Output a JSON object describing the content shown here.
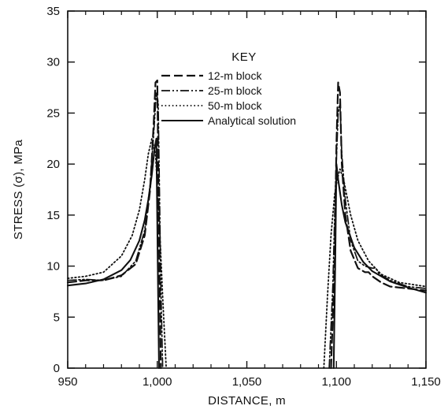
{
  "chart_data": {
    "type": "line",
    "title": "",
    "xlabel": "DISTANCE, m",
    "ylabel": "STRESS (σ), MPa",
    "xlim": [
      950,
      1150
    ],
    "ylim": [
      0,
      35
    ],
    "x_ticks": [
      950,
      1000,
      1050,
      1100,
      1150
    ],
    "x_tick_labels": [
      "950",
      "1,000",
      "1,050",
      "1,100",
      "1,150"
    ],
    "y_ticks": [
      0,
      5,
      10,
      15,
      20,
      25,
      30,
      35
    ],
    "y_tick_labels": [
      "0",
      "5",
      "10",
      "15",
      "20",
      "25",
      "30",
      "35"
    ],
    "grid": false,
    "legend": {
      "title": "KEY",
      "placement": "top-center",
      "entries": [
        "12-m block",
        "25-m block",
        "50-m block",
        "Analytical solution"
      ]
    },
    "series": [
      {
        "name": "12-m block",
        "style": "dashed",
        "segments": [
          [
            [
              950,
              8.4
            ],
            [
              960,
              8.6
            ],
            [
              970,
              8.6
            ],
            [
              980,
              9.1
            ],
            [
              988,
              10.2
            ],
            [
              993,
              13.0
            ],
            [
              996,
              17.5
            ],
            [
              998,
              24.0
            ],
            [
              999,
              28.0
            ],
            [
              1000,
              28.2
            ],
            [
              1001,
              12.0
            ],
            [
              1002,
              0
            ]
          ],
          [
            [
              1097,
              0
            ],
            [
              1099,
              10.0
            ],
            [
              1100,
              22.0
            ],
            [
              1101,
              28.0
            ],
            [
              1102,
              27.0
            ],
            [
              1103,
              20.0
            ],
            [
              1105,
              15.0
            ],
            [
              1108,
              11.5
            ],
            [
              1112,
              9.8
            ],
            [
              1116,
              9.4
            ],
            [
              1118,
              9.4
            ],
            [
              1120,
              9.0
            ],
            [
              1125,
              8.4
            ],
            [
              1130,
              8.0
            ],
            [
              1140,
              7.8
            ],
            [
              1150,
              7.6
            ]
          ]
        ]
      },
      {
        "name": "25-m block",
        "style": "dash-dot-dot",
        "segments": [
          [
            [
              950,
              8.6
            ],
            [
              960,
              8.7
            ],
            [
              970,
              8.6
            ],
            [
              980,
              9.0
            ],
            [
              988,
              10.5
            ],
            [
              993,
              13.5
            ],
            [
              996,
              18.0
            ],
            [
              998,
              23.0
            ],
            [
              999.5,
              27.0
            ],
            [
              1000.5,
              26.0
            ],
            [
              1002,
              8.0
            ],
            [
              1003,
              0
            ]
          ],
          [
            [
              1096,
              0
            ],
            [
              1098,
              8.0
            ],
            [
              1099.5,
              18.0
            ],
            [
              1101,
              25.0
            ],
            [
              1102,
              26.0
            ],
            [
              1103,
              21.0
            ],
            [
              1105,
              16.5
            ],
            [
              1108,
              12.5
            ],
            [
              1112,
              10.5
            ],
            [
              1116,
              10.0
            ],
            [
              1120,
              9.8
            ],
            [
              1122,
              9.8
            ],
            [
              1124,
              9.2
            ],
            [
              1130,
              8.6
            ],
            [
              1140,
              8.0
            ],
            [
              1150,
              7.8
            ]
          ]
        ]
      },
      {
        "name": "50-m block",
        "style": "dotted",
        "segments": [
          [
            [
              950,
              8.8
            ],
            [
              960,
              9.0
            ],
            [
              970,
              9.4
            ],
            [
              980,
              11.0
            ],
            [
              986,
              13.0
            ],
            [
              990,
              15.5
            ],
            [
              993,
              18.5
            ],
            [
              995,
              21.0
            ],
            [
              997,
              22.5
            ],
            [
              999,
              21.0
            ],
            [
              1001,
              15.0
            ],
            [
              1003,
              7.0
            ],
            [
              1005,
              0
            ]
          ],
          [
            [
              1093,
              0
            ],
            [
              1095,
              7.0
            ],
            [
              1097,
              13.0
            ],
            [
              1099,
              17.0
            ],
            [
              1100.5,
              18.5
            ],
            [
              1102,
              19.5
            ],
            [
              1104,
              18.5
            ],
            [
              1108,
              15.0
            ],
            [
              1112,
              12.5
            ],
            [
              1118,
              10.5
            ],
            [
              1125,
              9.2
            ],
            [
              1135,
              8.4
            ],
            [
              1150,
              8.0
            ]
          ]
        ]
      },
      {
        "name": "Analytical solution",
        "style": "solid",
        "segments": [
          [
            [
              950,
              8.1
            ],
            [
              960,
              8.3
            ],
            [
              970,
              8.7
            ],
            [
              980,
              9.6
            ],
            [
              985,
              10.6
            ],
            [
              990,
              12.5
            ],
            [
              993,
              14.5
            ],
            [
              995,
              16.5
            ],
            [
              997,
              19.0
            ],
            [
              998.5,
              21.5
            ],
            [
              999.5,
              22.5
            ],
            [
              1000.3,
              10.0
            ],
            [
              1001,
              0
            ]
          ],
          [
            [
              1098.5,
              0
            ],
            [
              1099.3,
              10.0
            ],
            [
              1100,
              20.0
            ],
            [
              1101,
              18.5
            ],
            [
              1103,
              16.0
            ],
            [
              1105,
              14.3
            ],
            [
              1110,
              11.8
            ],
            [
              1115,
              10.4
            ],
            [
              1120,
              9.5
            ],
            [
              1130,
              8.5
            ],
            [
              1140,
              7.9
            ],
            [
              1150,
              7.4
            ]
          ]
        ]
      }
    ]
  }
}
